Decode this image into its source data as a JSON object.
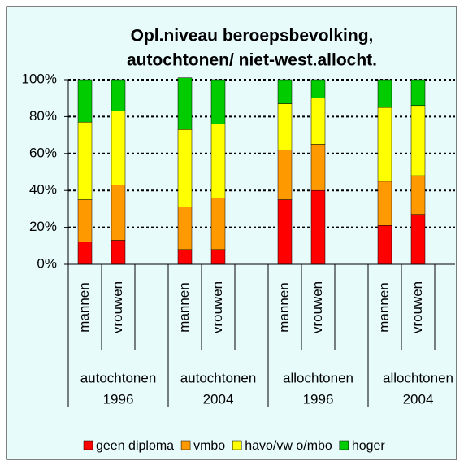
{
  "chart_data": {
    "type": "stacked_bar",
    "title": [
      "Opl.niveau beroepsbevolking,",
      "autochtonen/ niet-west.allocht."
    ],
    "categories": [
      "mannen",
      "vrouwen",
      null,
      "mannen",
      "vrouwen",
      null,
      "mannen",
      "vrouwen",
      null,
      "mannen",
      "vrouwen",
      null
    ],
    "groups": [
      {
        "label": [
          "autochtonen",
          "1996"
        ]
      },
      {
        "label": [
          "autochtonen",
          "2004"
        ]
      },
      {
        "label": [
          "allochtonen",
          "1996"
        ]
      },
      {
        "label": [
          "allochtonen",
          "2004"
        ]
      }
    ],
    "series": [
      {
        "name": "geen diploma",
        "color": "#ff0000",
        "values": [
          12,
          13,
          null,
          8,
          8,
          null,
          35,
          40,
          null,
          21,
          27,
          null
        ]
      },
      {
        "name": "vmbo",
        "color": "#ff9900",
        "values": [
          23,
          30,
          null,
          23,
          28,
          null,
          27,
          25,
          null,
          24,
          21,
          null
        ]
      },
      {
        "name": "havo/vw o/mbo",
        "color": "#ffff00",
        "values": [
          42,
          40,
          null,
          42,
          40,
          null,
          25,
          25,
          null,
          40,
          38,
          null
        ]
      },
      {
        "name": "hoger",
        "color": "#00cc00",
        "values": [
          23,
          17,
          null,
          28,
          24,
          null,
          13,
          10,
          null,
          15,
          14,
          null
        ]
      }
    ],
    "ylim": [
      0,
      100
    ],
    "yticks": [
      {
        "value": 0,
        "label": "0%"
      },
      {
        "value": 20,
        "label": "20%"
      },
      {
        "value": 40,
        "label": "40%"
      },
      {
        "value": 60,
        "label": "60%"
      },
      {
        "value": 80,
        "label": "80%"
      },
      {
        "value": 100,
        "label": "100%"
      }
    ],
    "grid": true,
    "legend": "bottom"
  }
}
